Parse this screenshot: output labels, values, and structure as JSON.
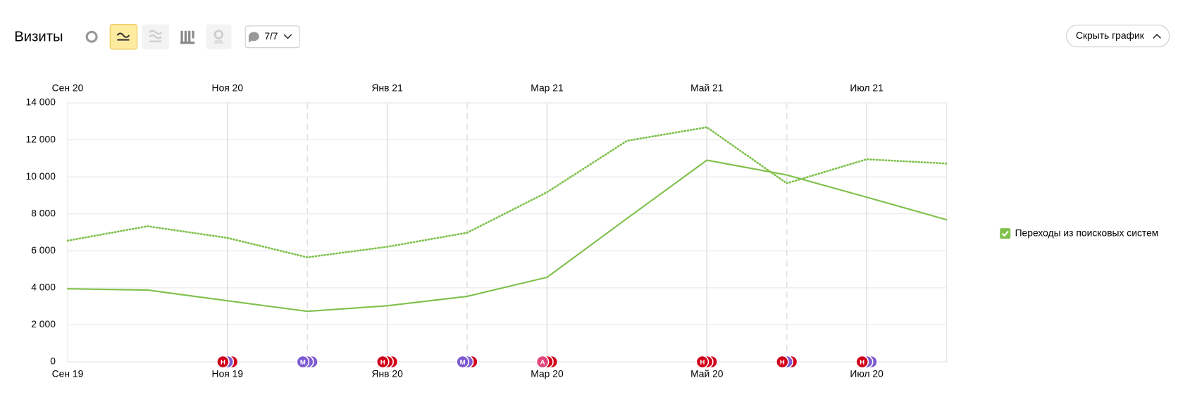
{
  "chart_data": {
    "type": "line",
    "title": "Визиты",
    "categories": [
      "Сен 19",
      null,
      "Ноя 19",
      null,
      "Янв 20",
      null,
      "Мар 20",
      null,
      "Май 20",
      null,
      "Июл 20",
      null
    ],
    "top_categories": [
      "Сен 20",
      null,
      "Ноя 20",
      null,
      "Янв 21",
      null,
      "Мар 21",
      null,
      "Май 21",
      null,
      "Июл 21",
      null
    ],
    "series": [
      {
        "name": "Переходы из поисковых систем",
        "color": "#7fc14c",
        "style": "solid",
        "values": [
          3950,
          3880,
          3300,
          2730,
          3030,
          3540,
          4570,
          7750,
          10900,
          10100,
          8900,
          7680
        ]
      },
      {
        "color": "#7fc14c",
        "style": "dotted",
        "values": [
          6550,
          7330,
          6700,
          5650,
          6220,
          6980,
          9170,
          11950,
          12680,
          9650,
          10950,
          10720
        ]
      }
    ],
    "ylim": [
      0,
      14000
    ],
    "yticks": [
      0,
      {
        "value": 2000,
        "label": "2 000"
      },
      {
        "value": 4000,
        "label": "4 000"
      },
      {
        "value": 6000,
        "label": "6 000"
      },
      {
        "value": 8000,
        "label": "8 000"
      },
      {
        "value": 10000,
        "label": "10 000"
      },
      {
        "value": 12000,
        "label": "12 000"
      },
      {
        "value": 14000,
        "label": "14 000"
      }
    ],
    "grid": true,
    "annotations": [
      {
        "index": 2,
        "letter": "Н",
        "colors": [
          "#d0021b",
          "#7e5bd1",
          "#d0021b"
        ]
      },
      {
        "index": 3,
        "letter": "М",
        "colors": [
          "#7e5bd1",
          "#7e5bd1",
          "#7e5bd1"
        ]
      },
      {
        "index": 4,
        "letter": "Н",
        "colors": [
          "#d0021b",
          "#d0021b",
          "#d0021b"
        ]
      },
      {
        "index": 5,
        "letter": "М",
        "colors": [
          "#7e5bd1",
          "#7e5bd1",
          "#d0021b"
        ]
      },
      {
        "index": 6,
        "letter": "А",
        "colors": [
          "#e0457b",
          "#d0021b",
          "#d0021b"
        ]
      },
      {
        "index": 8,
        "letter": "Н",
        "colors": [
          "#d0021b",
          "#d0021b",
          "#d0021b"
        ]
      },
      {
        "index": 9,
        "letter": "Н",
        "colors": [
          "#d0021b",
          "#7e5bd1",
          "#d0021b"
        ]
      },
      {
        "index": 10,
        "letter": "Н",
        "colors": [
          "#d0021b",
          "#7e5bd1",
          "#7e5bd1"
        ]
      }
    ]
  },
  "ui": {
    "comments_button": "7/7",
    "hide_button": "Скрыть график"
  }
}
